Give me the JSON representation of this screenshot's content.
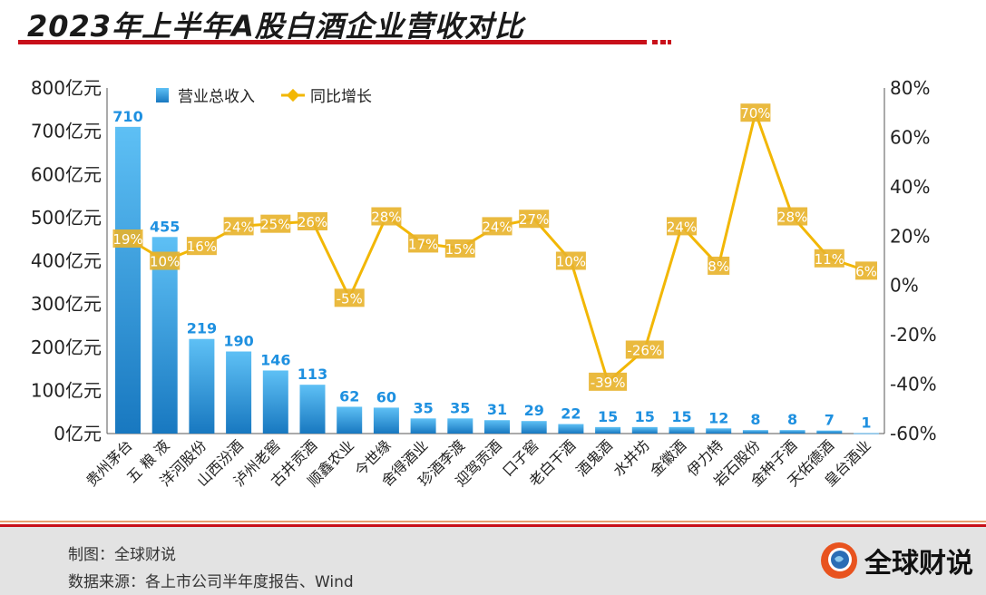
{
  "title": "2023年上半年A股白酒企业营收对比",
  "footer": {
    "maker": "制图：全球财说",
    "source": "数据来源：各上市公司半年度报告、Wind",
    "logo_text": "全球财说"
  },
  "chart_data": {
    "type": "bar+line",
    "title": "2023年上半年A股白酒企业营收对比",
    "categories": [
      "贵州茅台",
      "五 粮 液",
      "洋河股份",
      "山西汾酒",
      "泸州老窖",
      "古井贡酒",
      "顺鑫农业",
      "今世缘",
      "舍得酒业",
      "珍酒李渡",
      "迎驾贡酒",
      "口子窖",
      "老白干酒",
      "酒鬼酒",
      "水井坊",
      "金徽酒",
      "伊力特",
      "岩石股份",
      "金种子酒",
      "天佑德酒",
      "皇台酒业"
    ],
    "series": [
      {
        "name": "营业总收入",
        "axis": "left",
        "unit": "亿元",
        "values": [
          710,
          455,
          219,
          190,
          146,
          113,
          62,
          60,
          35,
          35,
          31,
          29,
          22,
          15,
          15,
          15,
          12,
          8,
          8,
          7,
          1
        ]
      },
      {
        "name": "同比增长",
        "axis": "right",
        "unit": "%",
        "values": [
          19,
          10,
          16,
          24,
          25,
          26,
          -5,
          28,
          17,
          15,
          24,
          27,
          10,
          -39,
          -26,
          24,
          8,
          70,
          28,
          11,
          6
        ]
      }
    ],
    "left_axis": {
      "ylim": [
        0,
        800
      ],
      "ticks": [
        "0亿元",
        "100亿元",
        "200亿元",
        "300亿元",
        "400亿元",
        "500亿元",
        "600亿元",
        "700亿元",
        "800亿元"
      ]
    },
    "right_axis": {
      "ylim": [
        -60,
        80
      ],
      "ticks": [
        "-60%",
        "-40%",
        "-20%",
        "0%",
        "20%",
        "40%",
        "60%",
        "80%"
      ]
    },
    "legend_position": "top-left",
    "colors": {
      "bar_top": "#5ec0f5",
      "bar_bottom": "#1878c0",
      "bar_label": "#1e90e0",
      "line": "#f2b705",
      "label_bg": "#e8b22a"
    }
  }
}
